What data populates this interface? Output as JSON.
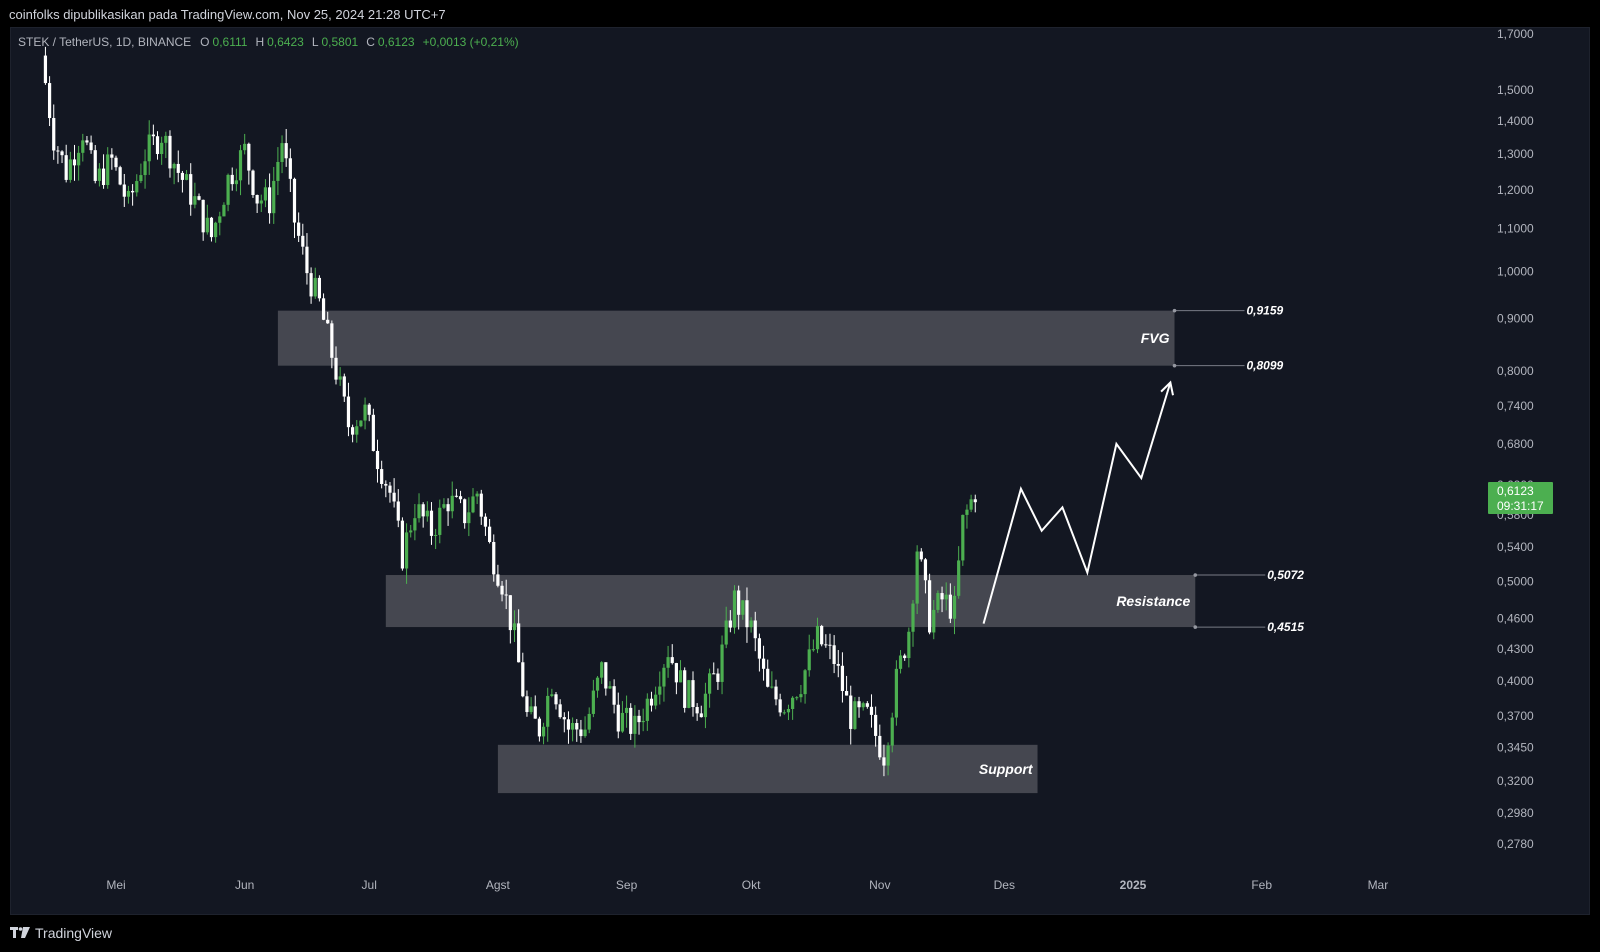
{
  "header": {
    "publish_text": "coinfolks dipublikasikan pada TradingView.com, Nov 25, 2024 21:28 UTC+7"
  },
  "legend": {
    "symbol": "STEK / TetherUS, 1D, BINANCE",
    "open_label": "O",
    "open": "0,6111",
    "high_label": "H",
    "high": "0,6423",
    "low_label": "L",
    "low": "0,5801",
    "close_label": "C",
    "close": "0,6123",
    "change": "+0,0013 (+0,21%)"
  },
  "price_label": {
    "price": "0,6123",
    "countdown": "09:31:17"
  },
  "footer": {
    "brand": "TradingView"
  },
  "colors": {
    "bull": "#4caf50",
    "bear": "#ffffff",
    "zone": "#4a4c55",
    "background": "#131722"
  },
  "chart_data": {
    "type": "candlestick",
    "y_scale": "log",
    "ylim": [
      0.26,
      1.75
    ],
    "y_ticks": [
      "1,7000",
      "1,5000",
      "1,4000",
      "1,3000",
      "1,2000",
      "1,1000",
      "1,0000",
      "0,9000",
      "0,8000",
      "0,7400",
      "0,6800",
      "0,6200",
      "0,5800",
      "0,5400",
      "0,5000",
      "0,4600",
      "0,4300",
      "0,4000",
      "0,3700",
      "0,3450",
      "0,3200",
      "0,2980",
      "0,2780"
    ],
    "x_labels": [
      "Mei",
      "Jun",
      "Jul",
      "Agst",
      "Sep",
      "Okt",
      "Nov",
      "Des",
      "2025",
      "Feb",
      "Mar"
    ],
    "x_label_dates": [
      "2024-05-01",
      "2024-06-01",
      "2024-07-01",
      "2024-08-01",
      "2024-09-01",
      "2024-10-01",
      "2024-11-01",
      "2024-12-01",
      "2025-01-01",
      "2025-02-01",
      "2025-03-01"
    ],
    "zones": [
      {
        "name": "FVG",
        "top": 0.9159,
        "bottom": 0.8099,
        "top_label": "0,9159",
        "bottom_label": "0,8099",
        "from": "2024-06-09",
        "to": "2025-01-11"
      },
      {
        "name": "Resistance",
        "top": 0.5072,
        "bottom": 0.4515,
        "top_label": "0,5072",
        "bottom_label": "0,4515",
        "from": "2024-07-05",
        "to": "2025-01-16"
      },
      {
        "name": "Support",
        "top": 0.347,
        "bottom": 0.3115,
        "from": "2024-08-01",
        "to": "2024-12-09"
      }
    ],
    "projection": [
      [
        "2024-11-26",
        0.455
      ],
      [
        "2024-12-05",
        0.615
      ],
      [
        "2024-12-10",
        0.56
      ],
      [
        "2024-12-15",
        0.59
      ],
      [
        "2024-12-21",
        0.51
      ],
      [
        "2024-12-28",
        0.68
      ],
      [
        "2025-01-03",
        0.63
      ],
      [
        "2025-01-10",
        0.78
      ]
    ],
    "candles_path": [
      [
        "2024-04-14",
        1.62
      ],
      [
        "2024-04-17",
        1.35
      ],
      [
        "2024-04-20",
        1.25
      ],
      [
        "2024-04-24",
        1.37
      ],
      [
        "2024-04-27",
        1.22
      ],
      [
        "2024-05-01",
        1.28
      ],
      [
        "2024-05-05",
        1.16
      ],
      [
        "2024-05-09",
        1.3
      ],
      [
        "2024-05-13",
        1.36
      ],
      [
        "2024-05-17",
        1.25
      ],
      [
        "2024-05-21",
        1.17
      ],
      [
        "2024-05-25",
        1.08
      ],
      [
        "2024-05-29",
        1.23
      ],
      [
        "2024-06-02",
        1.31
      ],
      [
        "2024-06-05",
        1.18
      ],
      [
        "2024-06-08",
        1.17
      ],
      [
        "2024-06-11",
        1.34
      ],
      [
        "2024-06-14",
        1.12
      ],
      [
        "2024-06-17",
        1.0
      ],
      [
        "2024-06-20",
        0.93
      ],
      [
        "2024-06-24",
        0.8
      ],
      [
        "2024-06-27",
        0.71
      ],
      [
        "2024-07-01",
        0.73
      ],
      [
        "2024-07-04",
        0.66
      ],
      [
        "2024-07-07",
        0.61
      ],
      [
        "2024-07-10",
        0.53
      ],
      [
        "2024-07-13",
        0.59
      ],
      [
        "2024-07-17",
        0.56
      ],
      [
        "2024-07-21",
        0.6
      ],
      [
        "2024-07-25",
        0.58
      ],
      [
        "2024-07-28",
        0.61
      ],
      [
        "2024-07-31",
        0.54
      ],
      [
        "2024-08-03",
        0.5
      ],
      [
        "2024-08-06",
        0.44
      ],
      [
        "2024-08-09",
        0.37
      ],
      [
        "2024-08-12",
        0.36
      ],
      [
        "2024-08-15",
        0.4
      ],
      [
        "2024-08-19",
        0.36
      ],
      [
        "2024-08-23",
        0.36
      ],
      [
        "2024-08-27",
        0.41
      ],
      [
        "2024-08-31",
        0.37
      ],
      [
        "2024-09-04",
        0.36
      ],
      [
        "2024-09-08",
        0.39
      ],
      [
        "2024-09-12",
        0.43
      ],
      [
        "2024-09-16",
        0.39
      ],
      [
        "2024-09-20",
        0.38
      ],
      [
        "2024-09-24",
        0.41
      ],
      [
        "2024-09-28",
        0.48
      ],
      [
        "2024-10-02",
        0.45
      ],
      [
        "2024-10-06",
        0.39
      ],
      [
        "2024-10-10",
        0.38
      ],
      [
        "2024-10-14",
        0.4
      ],
      [
        "2024-10-18",
        0.44
      ],
      [
        "2024-10-22",
        0.42
      ],
      [
        "2024-10-26",
        0.37
      ],
      [
        "2024-10-30",
        0.37
      ],
      [
        "2024-11-03",
        0.34
      ],
      [
        "2024-11-06",
        0.4
      ],
      [
        "2024-11-09",
        0.45
      ],
      [
        "2024-11-11",
        0.54
      ],
      [
        "2024-11-14",
        0.46
      ],
      [
        "2024-11-17",
        0.48
      ],
      [
        "2024-11-20",
        0.47
      ],
      [
        "2024-11-22",
        0.57
      ],
      [
        "2024-11-25",
        0.6123
      ]
    ]
  }
}
